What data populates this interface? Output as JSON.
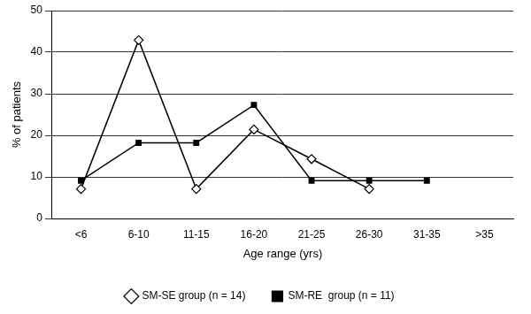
{
  "chart_data": {
    "type": "line",
    "x_label": "Age range (yrs)",
    "y_label": "% of patients",
    "categories": [
      "<6",
      "6-10",
      "11-15",
      "16-20",
      "21-25",
      "26-30",
      "31-35",
      ">35"
    ],
    "series": [
      {
        "name": "SM-SE group (n = 14)",
        "color": "#000000",
        "marker": "diamond-open",
        "values": [
          7.1,
          42.9,
          7.1,
          21.4,
          14.3,
          7.1,
          null,
          null
        ]
      },
      {
        "name": "SM-RE  group (n = 11)",
        "color": "#000000",
        "marker": "square",
        "values": [
          9.1,
          18.2,
          18.2,
          27.3,
          9.1,
          9.1,
          9.1,
          null
        ]
      }
    ],
    "ylim": [
      0,
      50
    ],
    "yticks": [
      0,
      10,
      20,
      30,
      40,
      50
    ],
    "grid": true,
    "legend": "bottom"
  }
}
